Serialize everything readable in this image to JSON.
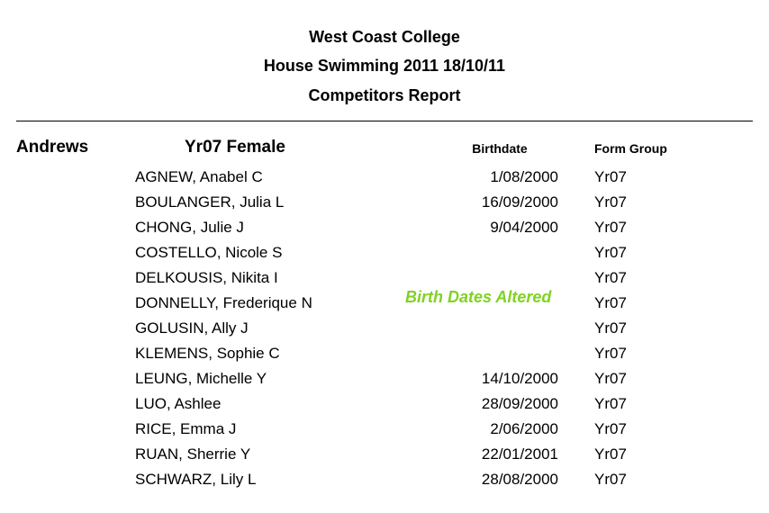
{
  "header": {
    "line1": "West Coast College",
    "line2": "House Swimming 2011 18/10/11",
    "line3": "Competitors Report"
  },
  "section": {
    "house": "Andrews",
    "group": "Yr07 Female",
    "columns": {
      "birthdate": "Birthdate",
      "form_group": "Form Group"
    },
    "rows": [
      {
        "name": "AGNEW, Anabel C",
        "birthdate": "1/08/2000",
        "form_group": "Yr07"
      },
      {
        "name": "BOULANGER, Julia L",
        "birthdate": "16/09/2000",
        "form_group": "Yr07"
      },
      {
        "name": "CHONG, Julie J",
        "birthdate": "9/04/2000",
        "form_group": "Yr07"
      },
      {
        "name": "COSTELLO, Nicole S",
        "birthdate": "",
        "form_group": "Yr07"
      },
      {
        "name": "DELKOUSIS, Nikita I",
        "birthdate": "",
        "form_group": "Yr07"
      },
      {
        "name": "DONNELLY, Frederique N",
        "birthdate": "",
        "form_group": "Yr07"
      },
      {
        "name": "GOLUSIN, Ally J",
        "birthdate": "",
        "form_group": "Yr07"
      },
      {
        "name": "KLEMENS, Sophie C",
        "birthdate": "",
        "form_group": "Yr07"
      },
      {
        "name": "LEUNG, Michelle Y",
        "birthdate": "14/10/2000",
        "form_group": "Yr07"
      },
      {
        "name": "LUO, Ashlee",
        "birthdate": "28/09/2000",
        "form_group": "Yr07"
      },
      {
        "name": "RICE, Emma J",
        "birthdate": "2/06/2000",
        "form_group": "Yr07"
      },
      {
        "name": "RUAN, Sherrie Y",
        "birthdate": "22/01/2001",
        "form_group": "Yr07"
      },
      {
        "name": "SCHWARZ, Lily L",
        "birthdate": "28/08/2000",
        "form_group": "Yr07"
      }
    ]
  },
  "overlay": {
    "note": "Birth Dates Altered",
    "color": "#7ed321"
  },
  "styling": {
    "background_color": "#ffffff",
    "text_color": "#000000",
    "header_fontsize": 18,
    "body_fontsize": 17,
    "column_header_fontsize": 14,
    "font_family": "Arial"
  }
}
